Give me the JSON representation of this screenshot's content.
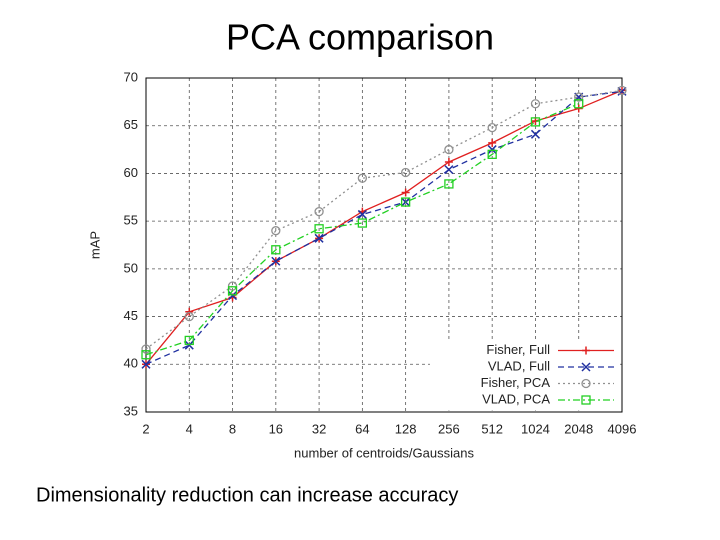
{
  "chart_data": {
    "type": "line",
    "title": "PCA comparison",
    "caption": "Dimensionality reduction can increase accuracy",
    "xlabel": "number of centroids/Gaussians",
    "ylabel": "mAP",
    "categories": [
      "2",
      "4",
      "8",
      "16",
      "32",
      "64",
      "128",
      "256",
      "512",
      "1024",
      "2048",
      "4096"
    ],
    "ylim": [
      35,
      70
    ],
    "yticks": [
      35,
      40,
      45,
      50,
      55,
      60,
      65,
      70
    ],
    "grid": true,
    "legend": "lower right",
    "series": [
      {
        "name": "Fisher, Full",
        "color": "#e02020",
        "marker": "plus",
        "dash": "solid",
        "values": [
          40,
          45.5,
          47,
          50.8,
          53.2,
          56,
          58,
          61.2,
          63.2,
          65.5,
          66.8,
          68.7
        ]
      },
      {
        "name": "VLAD, Full",
        "color": "#2030a0",
        "marker": "cross",
        "dash": "dashed",
        "values": [
          40,
          42,
          47.2,
          50.8,
          53.2,
          55.7,
          57,
          60.4,
          62.5,
          64.1,
          68,
          68.6
        ]
      },
      {
        "name": "Fisher, PCA",
        "color": "#909090",
        "marker": "circle",
        "dash": "dotted",
        "values": [
          41.6,
          45,
          48.2,
          54,
          56,
          59.5,
          60.1,
          62.5,
          64.8,
          67.3,
          68,
          68.7
        ]
      },
      {
        "name": "VLAD, PCA",
        "color": "#22d022",
        "marker": "square",
        "dash": "dashdot",
        "values": [
          41,
          42.5,
          47.7,
          52,
          54.2,
          54.8,
          57,
          58.9,
          62,
          65.4,
          67.3,
          null
        ]
      }
    ]
  }
}
